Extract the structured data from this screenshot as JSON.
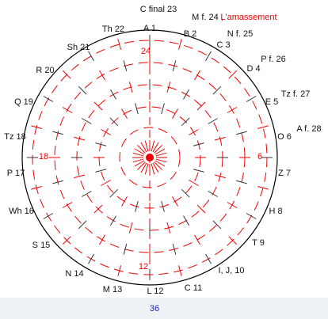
{
  "labels": [
    "C final 23",
    "M f. 24 ,",
    "L'amassement",
    "A 1",
    "B 2",
    "N f. 25",
    "C 3",
    "P f. 26",
    "D 4",
    "Th 22",
    "Sh 21",
    "R 20",
    "Q 19",
    "Tz f. 27",
    "E 5",
    "A f. 28",
    "O 6",
    "Tz 18",
    "P 17",
    "Z 7",
    "Wh 16",
    "H 8",
    "S 15",
    "T 9",
    "N 14",
    "I, J, 10",
    "M 13",
    "L 12",
    "C 11"
  ],
  "inner": [
    "24",
    "6",
    "12",
    "18"
  ],
  "footer": "36"
}
